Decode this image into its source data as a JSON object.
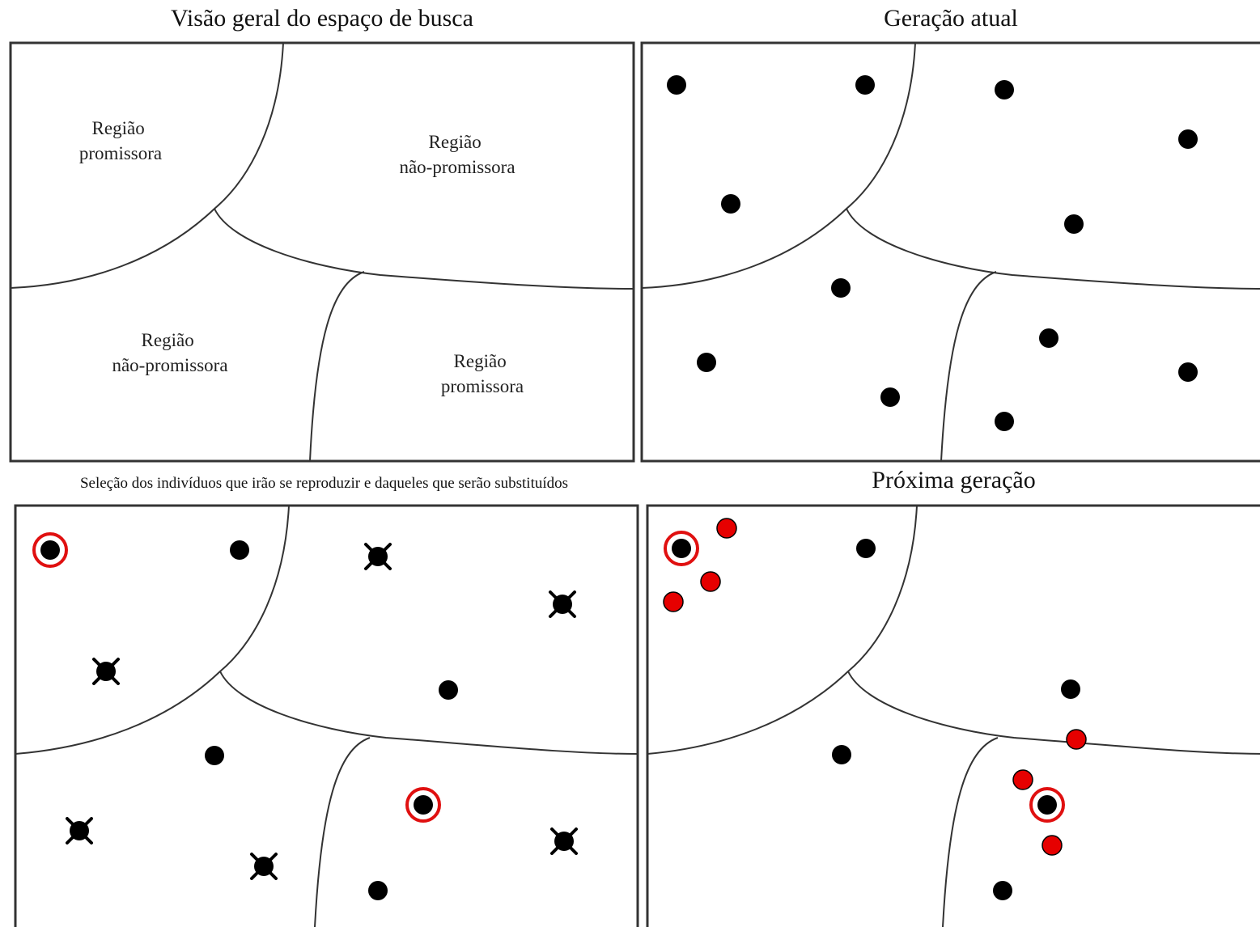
{
  "titles": {
    "overview": "Visão geral do espaço de busca",
    "current": "Geração atual",
    "selection": "Seleção dos indivíduos que irão se reproduzir e daqueles que serão substituídos",
    "next": "Próxima geração"
  },
  "regions": {
    "top_left": [
      "Região",
      "promissora"
    ],
    "top_right": [
      "Região",
      "não-promissora"
    ],
    "bottom_left": [
      "Região",
      "não-promissora"
    ],
    "bottom_right": [
      "Região",
      "promissora"
    ]
  },
  "colors": {
    "individual": "#000000",
    "offspring": "#e60000",
    "selected_ring": "#e01010",
    "stroke": "#333333"
  }
}
